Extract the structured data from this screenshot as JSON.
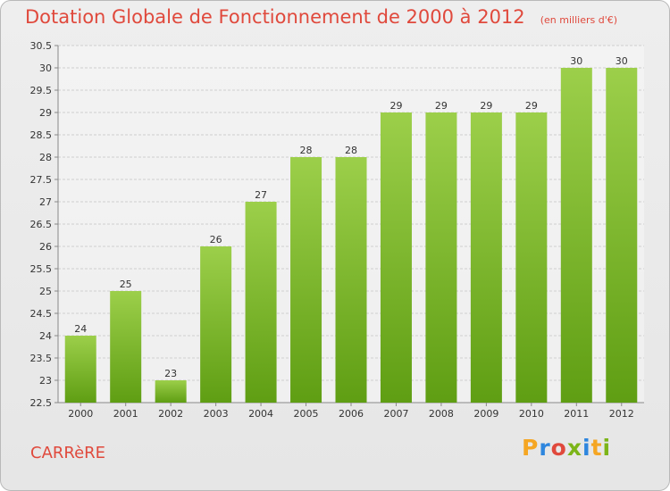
{
  "header": {
    "title": "Dotation Globale de Fonctionnement de 2000 à 2012",
    "subtitle": "(en milliers d'€)"
  },
  "footer": {
    "commune": "CARRèRE",
    "logo_letters": [
      "P",
      "r",
      "o",
      "x",
      "i",
      "t",
      "i"
    ],
    "logo_colors": [
      "#f5a623",
      "#2e86de",
      "#e0493c",
      "#7cb518",
      "#2e86de",
      "#f5a623",
      "#7cb518"
    ]
  },
  "colors": {
    "bar_top": "#9ccf4a",
    "bar_bottom": "#5f9e13",
    "title": "#e0493c"
  },
  "chart_data": {
    "type": "bar",
    "categories": [
      "2000",
      "2001",
      "2002",
      "2003",
      "2004",
      "2005",
      "2006",
      "2007",
      "2008",
      "2009",
      "2010",
      "2011",
      "2012"
    ],
    "values": [
      24,
      25,
      23,
      26,
      27,
      28,
      28,
      29,
      29,
      29,
      29,
      30,
      30
    ],
    "data_labels": [
      "24",
      "25",
      "23",
      "26",
      "27",
      "28",
      "28",
      "29",
      "29",
      "29",
      "29",
      "30",
      "30"
    ],
    "title": "Dotation Globale de Fonctionnement de 2000 à 2012",
    "subtitle": "(en milliers d'€)",
    "ylim": [
      22.5,
      30.5
    ],
    "yticks": [
      "22.5",
      "23",
      "23.5",
      "24",
      "24.5",
      "25",
      "25.5",
      "26",
      "26.5",
      "27",
      "27.5",
      "28",
      "28.5",
      "29",
      "29.5",
      "30",
      "30.5"
    ],
    "grid": true
  }
}
